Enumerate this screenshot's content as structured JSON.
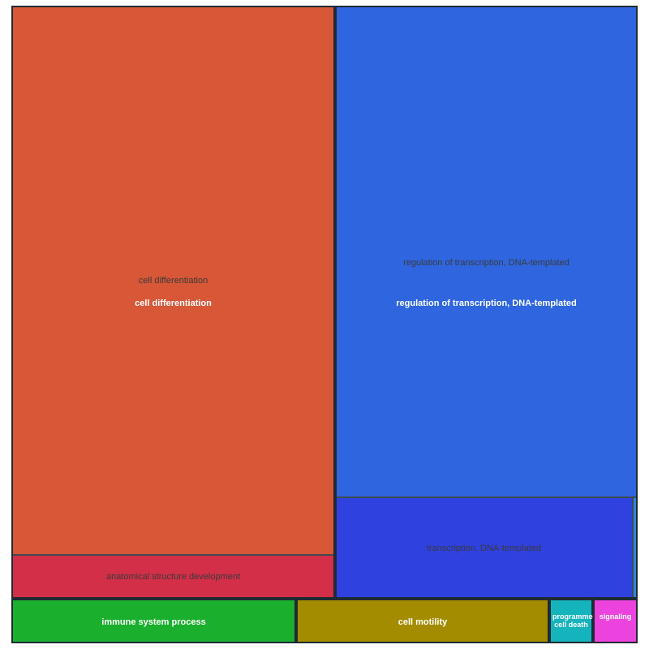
{
  "chart_data": {
    "type": "treemap",
    "groups": [
      {
        "name": "cell differentiation",
        "color": "#d75737",
        "children": [
          {
            "name": "cell differentiation",
            "color": "#d75737",
            "value": 85.8
          },
          {
            "name": "anatomical structure development",
            "color": "#d32f48",
            "value": 6.9
          }
        ]
      },
      {
        "name": "regulation of transcription, DNA-templated",
        "color": "#2f66df",
        "children": [
          {
            "name": "regulation of transcription, DNA-templated",
            "color": "#2f66df",
            "value": 63.2
          },
          {
            "name": "transcription, DNA-templated",
            "color": "#2f41df",
            "value": 12.8
          },
          {
            "name": "",
            "color": "#2f86df",
            "value": 0.2
          }
        ]
      },
      {
        "name": "immune system process",
        "color": "#1aaf2d",
        "value": 7.1,
        "children": []
      },
      {
        "name": "cell motility",
        "color": "#a48c00",
        "value": 6.3,
        "children": []
      },
      {
        "name": "programmed cell death",
        "color": "#15b3bb",
        "value": 1.1,
        "children": []
      },
      {
        "name": "signaling",
        "color": "#ec43de",
        "value": 1.1,
        "children": []
      }
    ]
  }
}
